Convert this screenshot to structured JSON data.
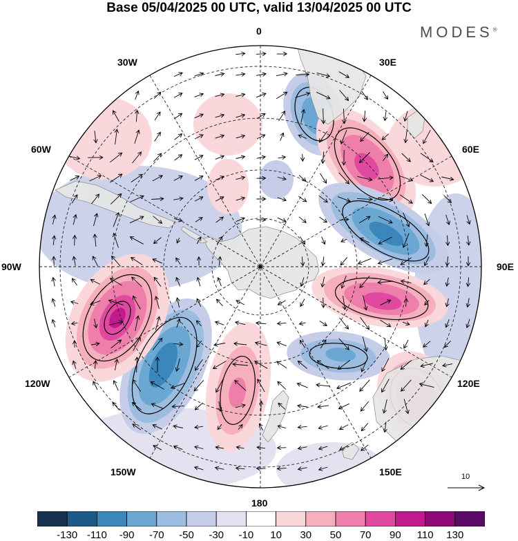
{
  "title": "Base 05/04/2025 00 UTC, valid 13/04/2025 00 UTC",
  "brand": {
    "name": "MODES",
    "mark": "®"
  },
  "map": {
    "projection": "south-polar-stereographic",
    "longitude_labels": {
      "lon_0": "0",
      "lon_30e": "30E",
      "lon_60e": "60E",
      "lon_90e": "90E",
      "lon_120e": "120E",
      "lon_150e": "150E",
      "lon_180": "180",
      "lon_150w": "150W",
      "lon_120w": "120W",
      "lon_90w": "90W",
      "lon_60w": "60W",
      "lon_30w": "30W"
    },
    "land_color": "#e6e6e6",
    "coast_color": "#8c8c8c"
  },
  "wind_reference": {
    "value": "10",
    "icon": "reference-arrow-icon"
  },
  "colorbar": {
    "colors": [
      "#18334f",
      "#1c5a87",
      "#3b86bb",
      "#6aa7d2",
      "#9dbde0",
      "#c5cde8",
      "#e4e2f1",
      "#ffffff",
      "#fad7da",
      "#f5afbd",
      "#ee7eaa",
      "#df4aa0",
      "#c01a8d",
      "#8e0a79",
      "#5c0a68"
    ],
    "tick_labels": [
      "-130",
      "-110",
      "-90",
      "-70",
      "-50",
      "-30",
      "-10",
      "10",
      "30",
      "50",
      "70",
      "90",
      "110",
      "130"
    ]
  }
}
